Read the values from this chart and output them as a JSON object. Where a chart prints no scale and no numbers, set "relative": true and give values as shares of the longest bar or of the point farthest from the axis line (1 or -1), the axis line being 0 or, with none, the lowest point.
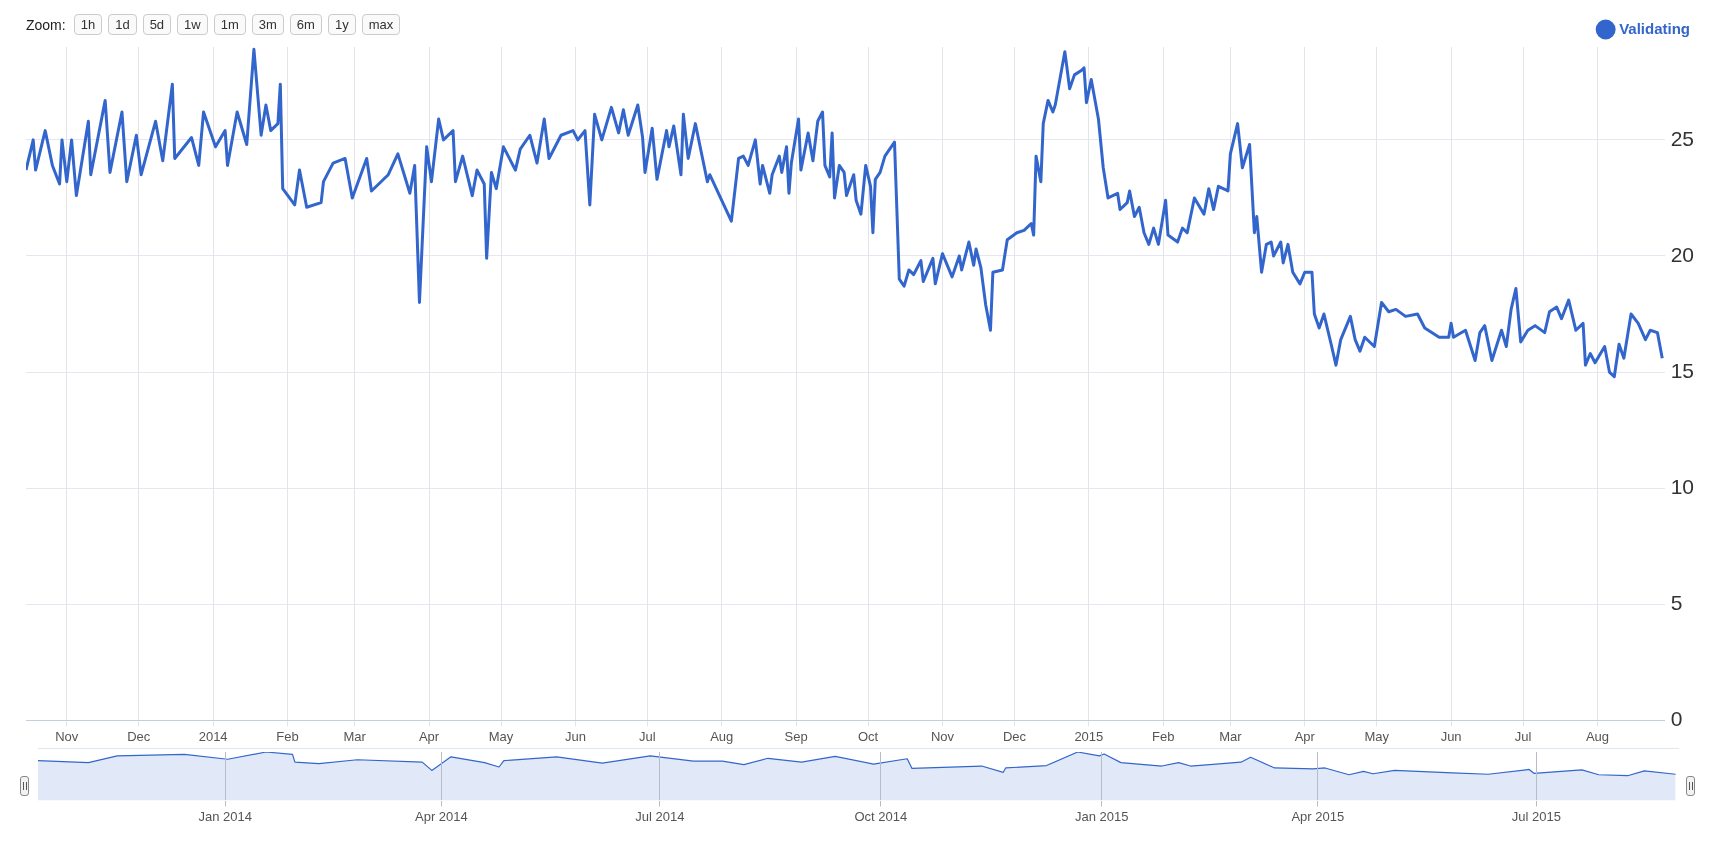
{
  "chart_data": [
    {
      "type": "line",
      "annotations": [
        "Zoom:",
        "1h",
        "1d",
        "5d",
        "1w",
        "1m",
        "3m",
        "6m",
        "1y",
        "max"
      ],
      "xlim": [
        "2013-10-15",
        "2015-08-29"
      ],
      "xticks": [
        {
          "value": "2013-11-01",
          "label": "Nov"
        },
        {
          "value": "2013-12-01",
          "label": "Dec"
        },
        {
          "value": "2014-01-01",
          "label": "2014"
        },
        {
          "value": "2014-02-01",
          "label": "Feb"
        },
        {
          "value": "2014-03-01",
          "label": "Mar"
        },
        {
          "value": "2014-04-01",
          "label": "Apr"
        },
        {
          "value": "2014-05-01",
          "label": "May"
        },
        {
          "value": "2014-06-01",
          "label": "Jun"
        },
        {
          "value": "2014-07-01",
          "label": "Jul"
        },
        {
          "value": "2014-08-01",
          "label": "Aug"
        },
        {
          "value": "2014-09-01",
          "label": "Sep"
        },
        {
          "value": "2014-10-01",
          "label": "Oct"
        },
        {
          "value": "2014-11-01",
          "label": "Nov"
        },
        {
          "value": "2014-12-01",
          "label": "Dec"
        },
        {
          "value": "2015-01-01",
          "label": "2015"
        },
        {
          "value": "2015-02-01",
          "label": "Feb"
        },
        {
          "value": "2015-03-01",
          "label": "Mar"
        },
        {
          "value": "2015-04-01",
          "label": "Apr"
        },
        {
          "value": "2015-05-01",
          "label": "May"
        },
        {
          "value": "2015-06-01",
          "label": "Jun"
        },
        {
          "value": "2015-07-01",
          "label": "Jul"
        },
        {
          "value": "2015-08-01",
          "label": "Aug"
        }
      ],
      "ylim": [
        0,
        29
      ],
      "yticks": [
        0,
        5,
        10,
        15,
        20,
        25
      ],
      "grid": true,
      "legend": "top right",
      "x": [
        "2013-10-15",
        "2013-10-18",
        "2013-10-19",
        "2013-10-23",
        "2013-10-26",
        "2013-10-29",
        "2013-10-30",
        "2013-11-01",
        "2013-11-03",
        "2013-11-05",
        "2013-11-10",
        "2013-11-11",
        "2013-11-17",
        "2013-11-19",
        "2013-11-24",
        "2013-11-26",
        "2013-11-30",
        "2013-12-02",
        "2013-12-08",
        "2013-12-11",
        "2013-12-15",
        "2013-12-16",
        "2013-12-23",
        "2013-12-26",
        "2013-12-28",
        "2014-01-02",
        "2014-01-06",
        "2014-01-07",
        "2014-01-11",
        "2014-01-15",
        "2014-01-18",
        "2014-01-21",
        "2014-01-23",
        "2014-01-25",
        "2014-01-28",
        "2014-01-29",
        "2014-01-30",
        "2014-02-04",
        "2014-02-06",
        "2014-02-09",
        "2014-02-15",
        "2014-02-16",
        "2014-02-20",
        "2014-02-25",
        "2014-02-28",
        "2014-03-06",
        "2014-03-08",
        "2014-03-15",
        "2014-03-19",
        "2014-03-24",
        "2014-03-26",
        "2014-03-28",
        "2014-03-31",
        "2014-04-02",
        "2014-04-05",
        "2014-04-07",
        "2014-04-11",
        "2014-04-12",
        "2014-04-15",
        "2014-04-19",
        "2014-04-21",
        "2014-04-24",
        "2014-04-25",
        "2014-04-27",
        "2014-04-29",
        "2014-05-02",
        "2014-05-07",
        "2014-05-09",
        "2014-05-13",
        "2014-05-16",
        "2014-05-19",
        "2014-05-21",
        "2014-05-26",
        "2014-05-31",
        "2014-06-02",
        "2014-06-05",
        "2014-06-07",
        "2014-06-09",
        "2014-06-12",
        "2014-06-16",
        "2014-06-19",
        "2014-06-21",
        "2014-06-23",
        "2014-06-27",
        "2014-06-29",
        "2014-06-30",
        "2014-07-03",
        "2014-07-05",
        "2014-07-09",
        "2014-07-10",
        "2014-07-12",
        "2014-07-15",
        "2014-07-16",
        "2014-07-18",
        "2014-07-21",
        "2014-07-24",
        "2014-07-26",
        "2014-07-27",
        "2014-08-05",
        "2014-08-08",
        "2014-08-10",
        "2014-08-12",
        "2014-08-15",
        "2014-08-17",
        "2014-08-18",
        "2014-08-21",
        "2014-08-22",
        "2014-08-25",
        "2014-08-26",
        "2014-08-28",
        "2014-08-29",
        "2014-08-30",
        "2014-09-02",
        "2014-09-03",
        "2014-09-06",
        "2014-09-08",
        "2014-09-10",
        "2014-09-12",
        "2014-09-13",
        "2014-09-15",
        "2014-09-16",
        "2014-09-17",
        "2014-09-19",
        "2014-09-21",
        "2014-09-22",
        "2014-09-25",
        "2014-09-26",
        "2014-09-28",
        "2014-09-30",
        "2014-10-02",
        "2014-10-03",
        "2014-10-04",
        "2014-10-06",
        "2014-10-08",
        "2014-10-12",
        "2014-10-14",
        "2014-10-16",
        "2014-10-18",
        "2014-10-20",
        "2014-10-23",
        "2014-10-24",
        "2014-10-28",
        "2014-10-29",
        "2014-11-01",
        "2014-11-05",
        "2014-11-08",
        "2014-11-09",
        "2014-11-12",
        "2014-11-14",
        "2014-11-15",
        "2014-11-17",
        "2014-11-19",
        "2014-11-21",
        "2014-11-22",
        "2014-11-26",
        "2014-11-28",
        "2014-12-02",
        "2014-12-05",
        "2014-12-08",
        "2014-12-09",
        "2014-12-10",
        "2014-12-12",
        "2014-12-13",
        "2014-12-15",
        "2014-12-17",
        "2014-12-18",
        "2014-12-22",
        "2014-12-24",
        "2014-12-26",
        "2014-12-29",
        "2014-12-30",
        "2014-12-31",
        "2015-01-02",
        "2015-01-05",
        "2015-01-07",
        "2015-01-09",
        "2015-01-13",
        "2015-01-14",
        "2015-01-17",
        "2015-01-18",
        "2015-01-20",
        "2015-01-22",
        "2015-01-24",
        "2015-01-26",
        "2015-01-28",
        "2015-01-30",
        "2015-02-02",
        "2015-02-03",
        "2015-02-07",
        "2015-02-09",
        "2015-02-11",
        "2015-02-14",
        "2015-02-18",
        "2015-02-20",
        "2015-02-22",
        "2015-02-24",
        "2015-02-28",
        "2015-03-01",
        "2015-03-04",
        "2015-03-06",
        "2015-03-09",
        "2015-03-11",
        "2015-03-12",
        "2015-03-14",
        "2015-03-16",
        "2015-03-18",
        "2015-03-19",
        "2015-03-22",
        "2015-03-23",
        "2015-03-25",
        "2015-03-27",
        "2015-03-30",
        "2015-04-01",
        "2015-04-02",
        "2015-04-04",
        "2015-04-05",
        "2015-04-07",
        "2015-04-09",
        "2015-04-12",
        "2015-04-14",
        "2015-04-16",
        "2015-04-20",
        "2015-04-22",
        "2015-04-24",
        "2015-04-26",
        "2015-04-30",
        "2015-05-03",
        "2015-05-06",
        "2015-05-09",
        "2015-05-13",
        "2015-05-18",
        "2015-05-21",
        "2015-05-27",
        "2015-05-31",
        "2015-06-01",
        "2015-06-02",
        "2015-06-07",
        "2015-06-11",
        "2015-06-13",
        "2015-06-15",
        "2015-06-18",
        "2015-06-22",
        "2015-06-24",
        "2015-06-26",
        "2015-06-28",
        "2015-06-30",
        "2015-07-03",
        "2015-07-06",
        "2015-07-10",
        "2015-07-12",
        "2015-07-15",
        "2015-07-17",
        "2015-07-20",
        "2015-07-23",
        "2015-07-26",
        "2015-07-27",
        "2015-07-29",
        "2015-07-31",
        "2015-08-04",
        "2015-08-06",
        "2015-08-08",
        "2015-08-10",
        "2015-08-12",
        "2015-08-15",
        "2015-08-18",
        "2015-08-21",
        "2015-08-23",
        "2015-08-26",
        "2015-08-28"
      ],
      "series": [
        {
          "name": "Validating",
          "color": "#3366cc",
          "values": [
            23.7,
            25.0,
            23.7,
            25.4,
            23.9,
            23.1,
            25.0,
            23.2,
            25.0,
            22.6,
            25.8,
            23.5,
            26.7,
            23.6,
            26.2,
            23.2,
            25.2,
            23.5,
            25.8,
            24.1,
            27.4,
            24.2,
            25.1,
            23.9,
            26.2,
            24.7,
            25.4,
            23.9,
            26.2,
            24.8,
            28.9,
            25.2,
            26.5,
            25.4,
            25.7,
            27.4,
            22.9,
            22.2,
            23.7,
            22.1,
            22.3,
            23.2,
            24.0,
            24.2,
            22.5,
            24.2,
            22.8,
            23.5,
            24.4,
            22.7,
            23.9,
            18.0,
            24.7,
            23.2,
            25.9,
            25.0,
            25.4,
            23.2,
            24.3,
            22.6,
            23.7,
            23.1,
            19.9,
            23.6,
            22.9,
            24.7,
            23.7,
            24.6,
            25.2,
            24.0,
            25.9,
            24.2,
            25.2,
            25.4,
            25.0,
            25.4,
            22.2,
            26.1,
            25.0,
            26.4,
            25.3,
            26.3,
            25.2,
            26.5,
            25.1,
            23.6,
            25.5,
            23.3,
            25.4,
            24.7,
            25.6,
            23.5,
            26.1,
            24.2,
            25.7,
            24.2,
            23.2,
            23.5,
            21.5,
            24.2,
            24.3,
            23.9,
            25.0,
            23.1,
            23.9,
            22.7,
            23.5,
            24.3,
            23.6,
            24.7,
            22.7,
            24.0,
            25.9,
            23.7,
            25.3,
            24.1,
            25.8,
            26.2,
            23.9,
            23.4,
            25.3,
            22.5,
            23.9,
            23.6,
            22.6,
            23.5,
            22.4,
            21.8,
            23.9,
            23.0,
            21.0,
            23.3,
            23.6,
            24.3,
            24.9,
            19.0,
            18.7,
            19.4,
            19.2,
            19.8,
            18.9,
            19.9,
            18.8,
            20.1,
            19.1,
            20.0,
            19.4,
            20.6,
            19.6,
            20.3,
            19.5,
            17.9,
            16.8,
            19.3,
            19.4,
            20.7,
            21.0,
            21.1,
            21.4,
            20.9,
            24.3,
            23.2,
            25.7,
            26.7,
            26.2,
            26.5,
            28.8,
            27.2,
            27.8,
            28.0,
            28.1,
            26.6,
            27.6,
            25.9,
            23.8,
            22.5,
            22.7,
            22.0,
            22.3,
            22.8,
            21.7,
            22.1,
            21.0,
            20.5,
            21.2,
            20.5,
            22.4,
            20.9,
            20.6,
            21.2,
            21.0,
            22.5,
            21.8,
            22.9,
            22.0,
            23.0,
            22.8,
            24.4,
            25.7,
            23.8,
            24.8,
            21.0,
            21.7,
            19.3,
            20.5,
            20.6,
            20.0,
            20.6,
            19.7,
            20.5,
            19.3,
            18.8,
            19.3,
            19.3,
            19.3,
            17.5,
            16.9,
            17.5,
            16.2,
            15.3,
            16.4,
            17.4,
            16.4,
            15.9,
            16.5,
            16.1,
            18.0,
            17.6,
            17.7,
            17.4,
            17.5,
            16.9,
            16.5,
            16.5,
            17.1,
            16.5,
            16.8,
            15.5,
            16.7,
            17.0,
            15.5,
            16.8,
            16.1,
            17.7,
            18.6,
            16.3,
            16.8,
            17.0,
            16.7,
            17.6,
            17.8,
            17.3,
            18.1,
            16.8,
            17.1,
            15.3,
            15.8,
            15.4,
            16.1,
            15.0,
            14.8,
            16.2,
            15.6,
            17.5,
            17.1,
            16.4,
            16.8,
            16.7,
            15.6
          ]
        }
      ]
    },
    {
      "type": "area",
      "tick_labels": "x",
      "grid": "x",
      "relative": true,
      "xlim": [
        "2013-10-15",
        "2015-08-29"
      ],
      "xticks": [
        {
          "value": "2014-01-01",
          "label": "Jan 2014"
        },
        {
          "value": "2014-04-01",
          "label": "Apr 2014"
        },
        {
          "value": "2014-07-01",
          "label": "Jul 2014"
        },
        {
          "value": "2014-10-01",
          "label": "Oct 2014"
        },
        {
          "value": "2015-01-01",
          "label": "Jan 2015"
        },
        {
          "value": "2015-04-01",
          "label": "Apr 2015"
        },
        {
          "value": "2015-07-01",
          "label": "Jul 2015"
        }
      ],
      "x": [
        "2013-10-15",
        "2013-11-05",
        "2013-11-17",
        "2013-12-15",
        "2014-01-02",
        "2014-01-18",
        "2014-01-29",
        "2014-01-30",
        "2014-02-09",
        "2014-02-25",
        "2014-03-24",
        "2014-03-28",
        "2014-04-05",
        "2014-04-19",
        "2014-04-25",
        "2014-04-27",
        "2014-05-19",
        "2014-06-07",
        "2014-06-27",
        "2014-07-15",
        "2014-07-27",
        "2014-08-05",
        "2014-08-15",
        "2014-08-29",
        "2014-09-12",
        "2014-09-28",
        "2014-10-12",
        "2014-10-14",
        "2014-11-12",
        "2014-11-21",
        "2014-11-22",
        "2014-12-09",
        "2014-12-22",
        "2014-12-31",
        "2015-01-02",
        "2015-01-09",
        "2015-01-26",
        "2015-02-02",
        "2015-02-07",
        "2015-02-28",
        "2015-03-04",
        "2015-03-14",
        "2015-03-30",
        "2015-04-04",
        "2015-04-14",
        "2015-04-20",
        "2015-04-24",
        "2015-05-03",
        "2015-05-27",
        "2015-06-11",
        "2015-06-28",
        "2015-06-30",
        "2015-07-20",
        "2015-07-27",
        "2015-08-08",
        "2015-08-15",
        "2015-08-28"
      ],
      "series": [
        {
          "color": "#3366cc",
          "values": [
            0.82,
            0.78,
            0.92,
            0.95,
            0.85,
            1.0,
            0.95,
            0.79,
            0.76,
            0.84,
            0.79,
            0.62,
            0.9,
            0.78,
            0.69,
            0.82,
            0.9,
            0.77,
            0.92,
            0.81,
            0.81,
            0.74,
            0.87,
            0.79,
            0.91,
            0.75,
            0.86,
            0.66,
            0.71,
            0.58,
            0.67,
            0.72,
            1.0,
            0.92,
            0.96,
            0.78,
            0.71,
            0.78,
            0.71,
            0.79,
            0.89,
            0.67,
            0.65,
            0.67,
            0.53,
            0.6,
            0.55,
            0.62,
            0.57,
            0.54,
            0.64,
            0.56,
            0.63,
            0.53,
            0.51,
            0.61,
            0.54
          ]
        }
      ]
    }
  ]
}
